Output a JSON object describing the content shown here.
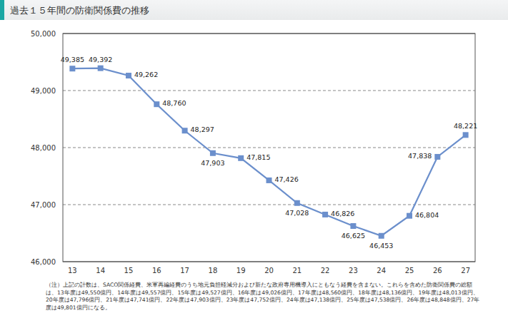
{
  "chart_data": {
    "type": "line",
    "title": "過去１５年間の防衛関係費の推移",
    "categories": [
      "13",
      "14",
      "15",
      "16",
      "17",
      "18",
      "19",
      "20",
      "21",
      "22",
      "23",
      "24",
      "25",
      "26",
      "27"
    ],
    "values": [
      49385,
      49392,
      49262,
      48760,
      48297,
      47903,
      47815,
      47426,
      47028,
      46826,
      46625,
      46453,
      46804,
      47838,
      48221
    ],
    "value_labels": [
      "49,385",
      "49,392",
      "49,262",
      "48,760",
      "48,297",
      "47,903",
      "47,815",
      "47,426",
      "47,028",
      "46,826",
      "46,625",
      "46,453",
      "46,804",
      "47,838",
      "48,221"
    ],
    "color": "#6b8fcc",
    "marker": "square",
    "line_style": "solid",
    "data_labels": true,
    "grid": true,
    "ylim": [
      46000,
      50000
    ],
    "yticks": [
      {
        "value": 46000,
        "label": "46,000"
      },
      {
        "value": 47000,
        "label": "47,000"
      },
      {
        "value": 48000,
        "label": "48,000"
      },
      {
        "value": 49000,
        "label": "49,000"
      },
      {
        "value": 50000,
        "label": "50,000"
      }
    ],
    "note": "（注）上記の計数は、SACO関係経費、米軍再編経費のうち地元負担軽減分および新たな政府専用機導入にともなう経費を含まない。これらを含めた防衛関係費の総額は、13年度は49,550億円、14年度は49,557億円、15年度は49,527億円、16年度は49,026億円、17年度は48,560億円、18年度は48,136億円、19年度は48,013億円、20年度は47,796億円、21年度は47,741億円、22年度は47,903億円、23年度は47,752億円、24年度は47,138億円、25年度は47,538億円、26年度は48,848億円、27年度は49,801億円になる。"
  }
}
